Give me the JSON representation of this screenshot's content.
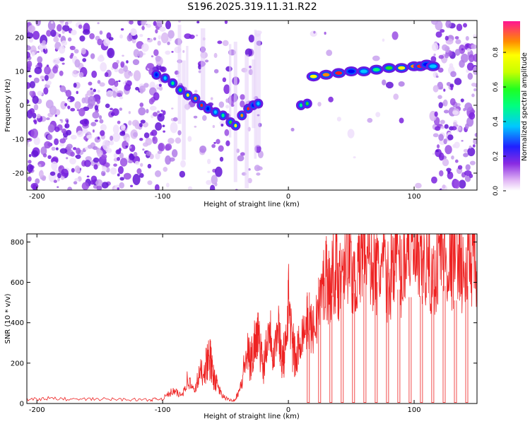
{
  "title": "S196.2025.319.11.31.R22",
  "colors": {
    "snr_line": "#ee2222",
    "frame": "#000000",
    "spectrogram_low": "#c9a2ee",
    "spectrogram_mid": "#6a1be0"
  },
  "chart_data": [
    {
      "type": "heatmap",
      "title": "S196.2025.319.11.31.R22",
      "xlabel": "Height of straight line (km)",
      "ylabel": "Frequency (Hz)",
      "xlim": [
        -208,
        150
      ],
      "ylim": [
        -25,
        25
      ],
      "xticks": [
        -200,
        -100,
        0,
        100
      ],
      "yticks": [
        -20,
        -10,
        0,
        10,
        20
      ],
      "colorbar": {
        "label": "Normalized spectral amplitude",
        "range": [
          0.0,
          0.98
        ],
        "ticks": [
          0.0,
          0.2,
          0.4,
          0.6,
          0.8
        ],
        "colormap": "rainbow"
      },
      "trace": {
        "x": [
          -105,
          -98,
          -92,
          -86,
          -80,
          -74,
          -69,
          -64,
          -58,
          -52,
          -46,
          -42,
          -37,
          -32,
          -28,
          -24,
          10,
          15,
          20,
          30,
          40,
          50,
          60,
          70,
          80,
          90,
          100,
          105,
          110,
          115
        ],
        "y": [
          9,
          8,
          6.5,
          4.5,
          3,
          2,
          0,
          -1,
          -2,
          -3,
          -5,
          -6,
          -3,
          -1,
          0,
          0.5,
          0,
          0.5,
          8.5,
          9,
          9.5,
          10,
          10,
          10.5,
          11,
          11,
          11.5,
          11.5,
          12,
          11.5
        ]
      },
      "blank_gaps": [
        [
          -22,
          0
        ],
        [
          110,
          115
        ]
      ]
    },
    {
      "type": "line",
      "xlabel": "Height of straight line (km)",
      "ylabel": "SNR (10 * v/v)",
      "xlim": [
        -208,
        150
      ],
      "ylim": [
        0,
        840
      ],
      "xticks": [
        -200,
        -100,
        0,
        100
      ],
      "yticks": [
        0,
        200,
        400,
        600,
        800
      ],
      "series": [
        {
          "name": "SNR",
          "x": [
            -208,
            -190,
            -170,
            -150,
            -130,
            -110,
            -100,
            -92,
            -85,
            -80,
            -75,
            -70,
            -65,
            -62,
            -60,
            -57,
            -53,
            -48,
            -43,
            -38,
            -33,
            -30,
            -27,
            -24,
            -20,
            -15,
            -12,
            -8,
            -5,
            -2,
            0,
            3,
            6,
            10,
            15,
            20,
            25,
            30,
            33,
            37,
            40,
            45,
            50,
            55,
            60,
            65,
            70,
            75,
            80,
            85,
            90,
            95,
            100,
            105,
            110,
            115,
            120,
            125,
            130,
            135,
            140,
            145,
            150
          ],
          "y": [
            20,
            25,
            20,
            22,
            20,
            18,
            25,
            60,
            40,
            120,
            60,
            150,
            200,
            220,
            140,
            100,
            40,
            20,
            15,
            80,
            250,
            200,
            300,
            350,
            180,
            400,
            250,
            380,
            220,
            260,
            540,
            300,
            200,
            340,
            400,
            360,
            500,
            650,
            560,
            700,
            600,
            780,
            650,
            620,
            800,
            720,
            640,
            680,
            580,
            790,
            620,
            830,
            720,
            650,
            700,
            600,
            760,
            720,
            680,
            800,
            600,
            740,
            640
          ]
        }
      ]
    }
  ]
}
